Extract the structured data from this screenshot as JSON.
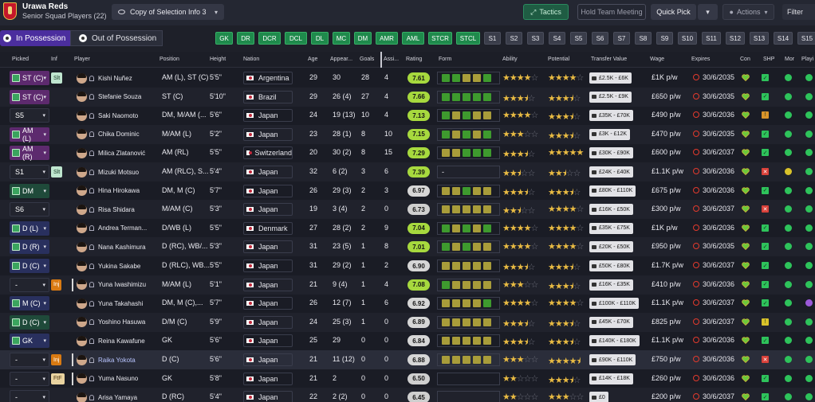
{
  "header": {
    "club_name": "Urawa Reds",
    "squad_name": "Senior Squad Players (22)",
    "view_select": "Copy of Selection Info 3",
    "tactics_label": "Tactics",
    "hold_team_meeting_label": "Hold Team Meeting",
    "quick_pick_label": "Quick Pick",
    "actions_label": "Actions",
    "filter_label": "Filter"
  },
  "possession": {
    "in_label": "In Possession",
    "out_label": "Out of Possession"
  },
  "position_chips": [
    {
      "label": "GK",
      "style": "g"
    },
    {
      "label": "DR",
      "style": "g"
    },
    {
      "label": "DCR",
      "style": "g"
    },
    {
      "label": "DCL",
      "style": "g"
    },
    {
      "label": "DL",
      "style": "g"
    },
    {
      "label": "MC",
      "style": "g"
    },
    {
      "label": "DM",
      "style": "g"
    },
    {
      "label": "AMR",
      "style": "g"
    },
    {
      "label": "AML",
      "style": "g"
    },
    {
      "label": "STCR",
      "style": "g"
    },
    {
      "label": "STCL",
      "style": "g"
    },
    {
      "label": "S1",
      "style": "s"
    },
    {
      "label": "S2",
      "style": "s"
    },
    {
      "label": "S3",
      "style": "s"
    },
    {
      "label": "S4",
      "style": "s"
    },
    {
      "label": "S5",
      "style": "s"
    },
    {
      "label": "S6",
      "style": "s"
    },
    {
      "label": "S7",
      "style": "s"
    },
    {
      "label": "S8",
      "style": "s"
    },
    {
      "label": "S9",
      "style": "s"
    },
    {
      "label": "S10",
      "style": "s"
    },
    {
      "label": "S11",
      "style": "s"
    },
    {
      "label": "S12",
      "style": "s"
    },
    {
      "label": "S13",
      "style": "s"
    },
    {
      "label": "S14",
      "style": "s"
    },
    {
      "label": "S15",
      "style": "s"
    }
  ],
  "columns": {
    "picked": "Picked",
    "inf": "Inf",
    "player": "Player",
    "position": "Position",
    "height": "Height",
    "nation": "Nation",
    "age": "Age",
    "appearances": "Appear...",
    "goals": "Goals",
    "assists": "Assi...",
    "rating": "Rating",
    "form": "Form",
    "ability": "Ability",
    "potential": "Potential",
    "transfer_value": "Transfer Value",
    "wage": "Wage",
    "expires": "Expires",
    "con": "Con",
    "shp": "SHP",
    "mor": "Mor",
    "playing_time": "Playi"
  },
  "colors": {
    "accent_purple": "#4b2e9e",
    "chip_green": "#1f8a4c",
    "star_gold": "#e9bb43",
    "form_green": "#3e9a2e",
    "form_olive": "#a89c3a"
  },
  "players": [
    {
      "picked": "ST (C)",
      "pick_style": "r",
      "inf": "Slt",
      "inf_style": "slt",
      "name": "Kishi Nuñez",
      "position": "AM (L), ST (C)",
      "height": "5'5\"",
      "nation": "Argentina",
      "age": "29",
      "apps": "30",
      "goals": "28",
      "assists": "4",
      "rating": "7.61",
      "form": [
        "g",
        "g",
        "o",
        "o",
        "g"
      ],
      "ability": 4,
      "potential": 4,
      "value": "£2.5K - £6K",
      "wage": "£1K p/w",
      "expires": "30/6/2035",
      "shp": "ok",
      "mor": "#2ec35b",
      "ply": "#2ec35b"
    },
    {
      "picked": "ST (C)",
      "pick_style": "r",
      "inf": "",
      "inf_style": "",
      "name": "Stefanie Souza",
      "position": "ST (C)",
      "height": "5'10\"",
      "nation": "Brazil",
      "age": "29",
      "apps": "26 (4)",
      "goals": "27",
      "assists": "4",
      "rating": "7.66",
      "form": [
        "g",
        "g",
        "g",
        "g",
        "g"
      ],
      "ability": 3.5,
      "potential": 3.5,
      "value": "£2.5K - £9K",
      "wage": "£650 p/w",
      "expires": "30/6/2035",
      "shp": "ok",
      "mor": "#2ec35b",
      "ply": "#2ec35b"
    },
    {
      "picked": "S5",
      "pick_style": "n",
      "inf": "",
      "inf_style": "",
      "name": "Saki Naomoto",
      "position": "DM, M/AM (...",
      "height": "5'6\"",
      "nation": "Japan",
      "age": "24",
      "apps": "19 (13)",
      "goals": "10",
      "assists": "4",
      "rating": "7.13",
      "form": [
        "g",
        "o",
        "g",
        "o",
        "o"
      ],
      "ability": 4,
      "potential": 3.5,
      "value": "£35K - £70K",
      "wage": "£490 p/w",
      "expires": "30/6/2036",
      "shp": "w",
      "mor": "#2ec35b",
      "ply": "#2ec35b"
    },
    {
      "picked": "AM (L)",
      "pick_style": "r",
      "inf": "",
      "inf_style": "",
      "name": "Chika Dominic",
      "position": "M/AM (L)",
      "height": "5'2\"",
      "nation": "Japan",
      "age": "23",
      "apps": "28 (1)",
      "goals": "8",
      "assists": "10",
      "rating": "7.15",
      "form": [
        "g",
        "o",
        "g",
        "o",
        "g"
      ],
      "ability": 3,
      "potential": 3.5,
      "value": "£3K - £12K",
      "wage": "£470 p/w",
      "expires": "30/6/2035",
      "shp": "ok",
      "mor": "#2ec35b",
      "ply": "#2ec35b"
    },
    {
      "picked": "AM (R)",
      "pick_style": "r",
      "inf": "",
      "inf_style": "",
      "name": "Milica Zlatanović",
      "position": "AM (RL)",
      "height": "5'5\"",
      "nation": "Switzerland",
      "age": "20",
      "apps": "30 (2)",
      "goals": "8",
      "assists": "15",
      "rating": "7.29",
      "form": [
        "o",
        "o",
        "g",
        "g",
        "g"
      ],
      "ability": 3.5,
      "potential": 5,
      "value": "£30K - £90K",
      "wage": "£600 p/w",
      "expires": "30/6/2037",
      "shp": "ok",
      "mor": "#2ec35b",
      "ply": "#2ec35b"
    },
    {
      "picked": "S1",
      "pick_style": "n",
      "inf": "Slt",
      "inf_style": "slt",
      "name": "Mizuki Motsuo",
      "position": "AM (RLC), S...",
      "height": "5'4\"",
      "nation": "Japan",
      "age": "32",
      "apps": "6 (2)",
      "goals": "3",
      "assists": "6",
      "rating": "7.39",
      "form": [],
      "form_text": "-",
      "ability": 2.5,
      "potential": 2.5,
      "value": "£24K - £40K",
      "wage": "£1.1K p/w",
      "expires": "30/6/2036",
      "shp": "x",
      "mor": "#d9c22a",
      "ply": "#2ec35b"
    },
    {
      "picked": "DM",
      "pick_style": "g",
      "inf": "",
      "inf_style": "",
      "name": "Hina Hirokawa",
      "position": "DM, M (C)",
      "height": "5'7\"",
      "nation": "Japan",
      "age": "26",
      "apps": "29 (3)",
      "goals": "2",
      "assists": "3",
      "rating": "6.97",
      "form": [
        "o",
        "o",
        "g",
        "o",
        "o"
      ],
      "ability": 3.5,
      "potential": 3.5,
      "value": "£80K - £110K",
      "wage": "£675 p/w",
      "expires": "30/6/2036",
      "shp": "ok",
      "mor": "#2ec35b",
      "ply": "#2ec35b"
    },
    {
      "picked": "S6",
      "pick_style": "n",
      "inf": "",
      "inf_style": "",
      "name": "Risa Shidara",
      "position": "M/AM (C)",
      "height": "5'3\"",
      "nation": "Japan",
      "age": "19",
      "apps": "3 (4)",
      "goals": "2",
      "assists": "0",
      "rating": "6.73",
      "form": [
        "o",
        "o",
        "o",
        "o",
        "o"
      ],
      "ability": 2.5,
      "potential": 4,
      "value": "£16K - £50K",
      "wage": "£300 p/w",
      "expires": "30/6/2037",
      "shp": "x",
      "mor": "#2ec35b",
      "ply": "#2ec35b"
    },
    {
      "picked": "D (L)",
      "pick_style": "b",
      "inf": "",
      "inf_style": "",
      "name": "Andrea Terman...",
      "position": "D/WB (L)",
      "height": "5'5\"",
      "nation": "Denmark",
      "age": "27",
      "apps": "28 (2)",
      "goals": "2",
      "assists": "9",
      "rating": "7.04",
      "form": [
        "g",
        "o",
        "g",
        "o",
        "g"
      ],
      "ability": 4,
      "potential": 4,
      "value": "£35K - £75K",
      "wage": "£1K p/w",
      "expires": "30/6/2036",
      "shp": "ok",
      "mor": "#2ec35b",
      "ply": "#2ec35b"
    },
    {
      "picked": "D (R)",
      "pick_style": "b",
      "inf": "",
      "inf_style": "",
      "name": "Nana Kashimura",
      "position": "D (RC), WB/...",
      "height": "5'3\"",
      "nation": "Japan",
      "age": "31",
      "apps": "23 (5)",
      "goals": "1",
      "assists": "8",
      "rating": "7.01",
      "form": [
        "g",
        "o",
        "g",
        "o",
        "o"
      ],
      "ability": 4,
      "potential": 4,
      "value": "£20K - £50K",
      "wage": "£950 p/w",
      "expires": "30/6/2035",
      "shp": "ok",
      "mor": "#2ec35b",
      "ply": "#2ec35b"
    },
    {
      "picked": "D (C)",
      "pick_style": "b",
      "inf": "",
      "inf_style": "",
      "name": "Yukina Sakabe",
      "position": "D (RLC), WB...",
      "height": "5'5\"",
      "nation": "Japan",
      "age": "31",
      "apps": "29 (2)",
      "goals": "1",
      "assists": "2",
      "rating": "6.90",
      "form": [
        "o",
        "o",
        "o",
        "o",
        "o"
      ],
      "ability": 3.5,
      "potential": 3.5,
      "value": "£50K - £80K",
      "wage": "£1.7K p/w",
      "expires": "30/6/2037",
      "shp": "ok",
      "mor": "#2ec35b",
      "ply": "#2ec35b"
    },
    {
      "picked": "-",
      "pick_style": "n",
      "inf": "Inj",
      "inf_style": "inj",
      "name": "Yuna Iwashimizu",
      "position": "M/AM (L)",
      "height": "5'1\"",
      "nation": "Japan",
      "age": "21",
      "apps": "9 (4)",
      "goals": "1",
      "assists": "4",
      "rating": "7.08",
      "form": [
        "g",
        "o",
        "o",
        "o",
        "o"
      ],
      "ability": 3,
      "potential": 3.5,
      "value": "£16K - £35K",
      "wage": "£410 p/w",
      "expires": "30/6/2036",
      "shp": "ok",
      "mor": "#2ec35b",
      "ply": "#2ec35b"
    },
    {
      "picked": "M (C)",
      "pick_style": "b",
      "inf": "",
      "inf_style": "",
      "name": "Yuna Takahashi",
      "position": "DM, M (C),...",
      "height": "5'7\"",
      "nation": "Japan",
      "age": "26",
      "apps": "12 (7)",
      "goals": "1",
      "assists": "6",
      "rating": "6.92",
      "form": [
        "o",
        "o",
        "o",
        "o",
        "g"
      ],
      "ability": 4,
      "potential": 4,
      "value": "£100K - £110K",
      "wage": "£1.1K p/w",
      "expires": "30/6/2037",
      "shp": "ok",
      "mor": "#2ec35b",
      "ply": "#9b59d9"
    },
    {
      "picked": "D (C)",
      "pick_style": "g",
      "inf": "",
      "inf_style": "",
      "name": "Yoshino Hasuwa",
      "position": "D/M (C)",
      "height": "5'9\"",
      "nation": "Japan",
      "age": "24",
      "apps": "25 (3)",
      "goals": "1",
      "assists": "0",
      "rating": "6.89",
      "form": [
        "o",
        "o",
        "o",
        "o",
        "o"
      ],
      "ability": 3.5,
      "potential": 3.5,
      "value": "£45K - £70K",
      "wage": "£825 p/w",
      "expires": "30/6/2037",
      "shp": "y",
      "mor": "#2ec35b",
      "ply": "#2ec35b"
    },
    {
      "picked": "GK",
      "pick_style": "b",
      "inf": "",
      "inf_style": "",
      "name": "Reina Kawafune",
      "position": "GK",
      "height": "5'6\"",
      "nation": "Japan",
      "age": "25",
      "apps": "29",
      "goals": "0",
      "assists": "0",
      "rating": "6.84",
      "form": [
        "o",
        "o",
        "o",
        "o",
        "o"
      ],
      "ability": 3.5,
      "potential": 3.5,
      "value": "£140K - £180K",
      "wage": "£1.1K p/w",
      "expires": "30/6/2036",
      "shp": "ok",
      "mor": "#2ec35b",
      "ply": "#2ec35b"
    },
    {
      "picked": "-",
      "pick_style": "n",
      "inf": "Inj",
      "inf_style": "inj",
      "name": "Raika Yokota",
      "position": "D (C)",
      "height": "5'6\"",
      "nation": "Japan",
      "age": "21",
      "apps": "11 (12)",
      "goals": "0",
      "assists": "0",
      "rating": "6.88",
      "form": [
        "o",
        "o",
        "o",
        "o",
        "o"
      ],
      "ability": 3,
      "potential": 4.5,
      "value": "£90K - £110K",
      "wage": "£750 p/w",
      "expires": "30/6/2036",
      "shp": "x",
      "mor": "#2ec35b",
      "ply": "#2ec35b",
      "highlight": true
    },
    {
      "picked": "-",
      "pick_style": "n",
      "inf": "FtF",
      "inf_style": "ftf",
      "name": "Yuma Nasuno",
      "position": "GK",
      "height": "5'8\"",
      "nation": "Japan",
      "age": "21",
      "apps": "2",
      "goals": "0",
      "assists": "0",
      "rating": "6.50",
      "form": [],
      "form_text": "",
      "ability": 2,
      "potential": 3.5,
      "value": "£14K - £18K",
      "wage": "£260 p/w",
      "expires": "30/6/2036",
      "shp": "ok",
      "mor": "#2ec35b",
      "ply": "#2ec35b"
    },
    {
      "picked": "-",
      "pick_style": "n",
      "inf": "",
      "inf_style": "",
      "name": "Arisa Yamaya",
      "position": "D (RC)",
      "height": "5'4\"",
      "nation": "Japan",
      "age": "22",
      "apps": "2 (2)",
      "goals": "0",
      "assists": "0",
      "rating": "6.45",
      "form": [],
      "form_text": "",
      "ability": 2,
      "potential": 3,
      "value": "£0",
      "wage": "£200 p/w",
      "expires": "30/6/2037",
      "shp": "ok",
      "mor": "#2ec35b",
      "ply": "#2ec35b"
    }
  ]
}
